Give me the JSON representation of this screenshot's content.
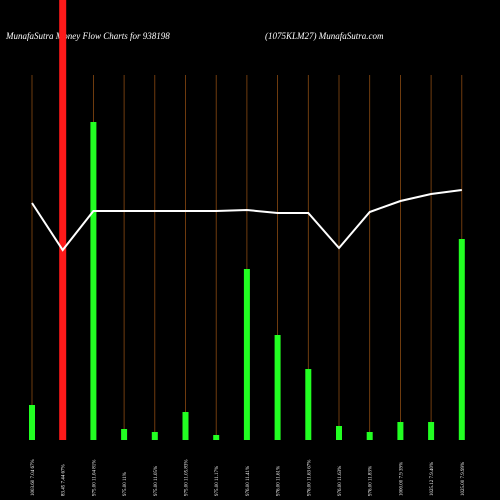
{
  "chart_data": {
    "type": "bar",
    "title": "MunafaSutra  Money Flow  Charts for 938198",
    "subtitle": "(1075KLM27) MunafaSutra.com",
    "categories": [
      "1003.60 7.04 67%",
      "83.45 7.44 67%",
      "975.00 11.04 81%",
      "975.00 11%",
      "975.00 11.05%",
      "975.00 11.05.83%",
      "975.00 11.17%",
      "976.00 11.41%",
      "976.00 11.61%",
      "976.00 11.63 67%",
      "976.00 11.63%",
      "976.00 11.83%",
      "1000.00 7.9 39%",
      "1025.12 7.9.40%",
      "1025.00 7.9.99%"
    ],
    "values": [
      35,
      440,
      318,
      11,
      8,
      28,
      5,
      171,
      105,
      71,
      14,
      8,
      18,
      18,
      201
    ],
    "bar_colors": [
      "#22ff22",
      "#ff1a1a",
      "#22ff22",
      "#22ff22",
      "#22ff22",
      "#22ff22",
      "#22ff22",
      "#22ff22",
      "#22ff22",
      "#22ff22",
      "#22ff22",
      "#22ff22",
      "#22ff22",
      "#22ff22",
      "#22ff22"
    ],
    "line_values": [
      237,
      190,
      229,
      229,
      229,
      229,
      229,
      230,
      227,
      227,
      192,
      228,
      239,
      246,
      250
    ],
    "line_color": "#ffffff",
    "ylim": [
      0,
      440
    ]
  }
}
